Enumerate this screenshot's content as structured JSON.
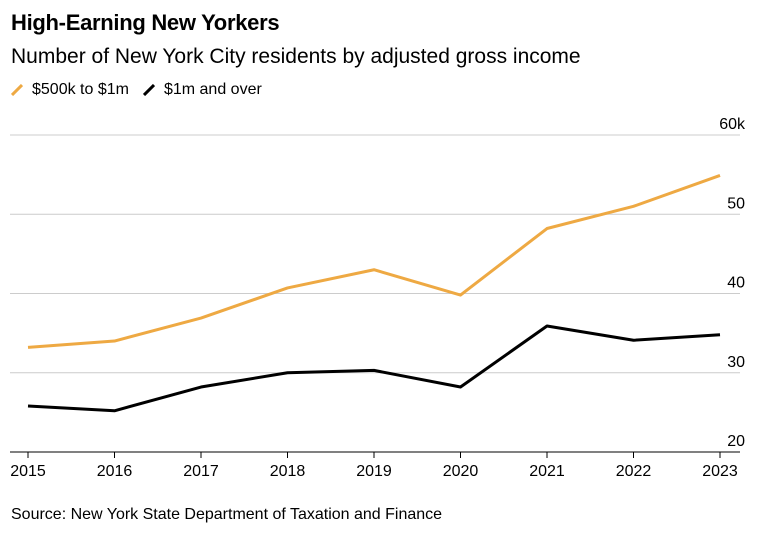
{
  "title": "High-Earning New Yorkers",
  "subtitle": "Number of New York City residents by adjusted gross income",
  "source": "Source: New York State Department of Taxation and Finance",
  "chart_data": {
    "type": "line",
    "title": "High-Earning New Yorkers",
    "x": [
      "2015",
      "2016",
      "2017",
      "2018",
      "2019",
      "2020",
      "2021",
      "2022",
      "2023"
    ],
    "series": [
      {
        "name": "$500k to $1m",
        "color": "#eea943",
        "values": [
          33.2,
          34.0,
          36.9,
          40.7,
          43.0,
          39.8,
          48.2,
          51.0,
          54.9
        ]
      },
      {
        "name": "$1m and over",
        "color": "#000000",
        "values": [
          25.8,
          25.2,
          28.2,
          30.0,
          30.3,
          28.2,
          35.9,
          34.1,
          34.8
        ]
      }
    ],
    "ylim": [
      20,
      60
    ],
    "yticks": [
      60,
      50,
      40,
      30,
      20
    ],
    "ytick_labels": [
      "60k",
      "50",
      "40",
      "30",
      "20"
    ],
    "y_axis_side": "right",
    "grid": true,
    "legend_placement": "top-left",
    "xlabel": "",
    "ylabel": "",
    "unit": "thousands"
  }
}
